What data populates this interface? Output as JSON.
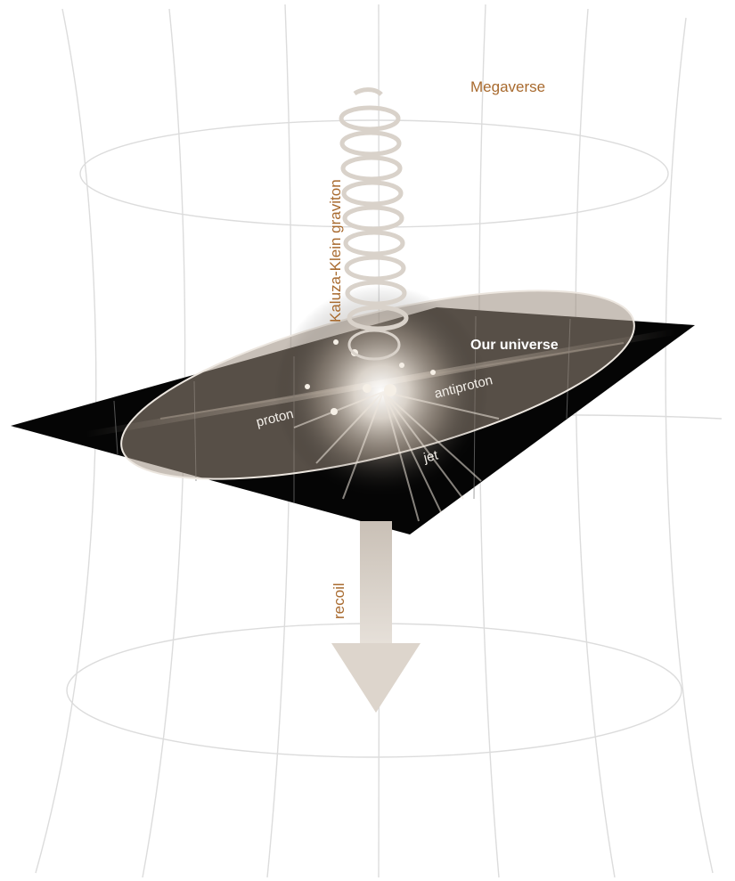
{
  "labels": {
    "megaverse": "Megaverse",
    "graviton": "Kaluza-Klein graviton",
    "universe": "Our universe",
    "proton": "proton",
    "antiproton": "antiproton",
    "jet": "jet",
    "recoil": "recoil"
  },
  "colors": {
    "label_brown": "#a86a2e",
    "grid_line": "#dcdcdc",
    "brane": "#050505",
    "arrow": "#ddd5cc"
  }
}
